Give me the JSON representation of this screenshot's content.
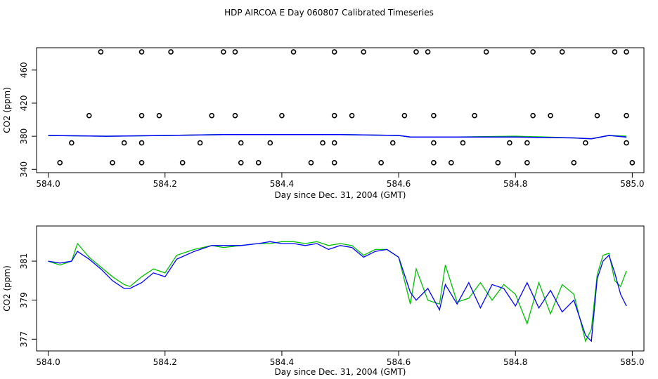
{
  "title": "HDP AIRCOA E  Day 060807  Calibrated Timeseries",
  "colors": {
    "series_green": "#00c000",
    "series_blue": "#0000ff",
    "axis": "#000000"
  },
  "chart_data": [
    {
      "type": "line",
      "xlabel": "Day since Dec. 31, 2004 (GMT)",
      "ylabel": "CO2 (ppm)",
      "xlim": [
        583.98,
        585.02
      ],
      "ylim": [
        336,
        487
      ],
      "xticks": [
        584.0,
        584.2,
        584.4,
        584.6,
        584.8,
        585.0
      ],
      "xtick_labels": [
        "584.0",
        "584.2",
        "584.4",
        "584.6",
        "584.8",
        "585.0"
      ],
      "yticks": [
        340,
        380,
        420,
        460
      ],
      "ytick_labels": [
        "340",
        "380",
        "420",
        "460"
      ],
      "series_green": {
        "x": [
          584.0,
          584.1,
          584.2,
          584.3,
          584.4,
          584.5,
          584.6,
          584.62,
          584.7,
          584.8,
          584.9,
          584.93,
          584.96,
          584.99
        ],
        "y": [
          381,
          380,
          381,
          382,
          382,
          382,
          381,
          379,
          379,
          380,
          378,
          377,
          381,
          380
        ]
      },
      "series_blue": {
        "x": [
          584.0,
          584.1,
          584.2,
          584.3,
          584.4,
          584.5,
          584.6,
          584.62,
          584.7,
          584.8,
          584.9,
          584.93,
          584.96,
          584.99
        ],
        "y": [
          381,
          380,
          381,
          382,
          382,
          382,
          381,
          379,
          379,
          379,
          378,
          377,
          381,
          379
        ]
      },
      "points": {
        "x": [
          584.09,
          584.16,
          584.21,
          584.3,
          584.32,
          584.42,
          584.49,
          584.54,
          584.63,
          584.65,
          584.75,
          584.83,
          584.88,
          584.97,
          584.99,
          584.07,
          584.16,
          584.19,
          584.28,
          584.32,
          584.4,
          584.49,
          584.52,
          584.61,
          584.66,
          584.73,
          584.83,
          584.86,
          584.94,
          584.99,
          584.04,
          584.13,
          584.16,
          584.26,
          584.33,
          584.38,
          584.47,
          584.49,
          584.59,
          584.66,
          584.71,
          584.79,
          584.82,
          584.92,
          584.99,
          584.02,
          584.11,
          584.16,
          584.23,
          584.33,
          584.36,
          584.45,
          584.49,
          584.57,
          584.66,
          584.69,
          584.77,
          584.82,
          584.9,
          585.0
        ],
        "y": [
          482,
          482,
          482,
          482,
          482,
          482,
          482,
          482,
          482,
          482,
          482,
          482,
          482,
          482,
          482,
          405,
          405,
          405,
          405,
          405,
          405,
          405,
          405,
          405,
          405,
          405,
          405,
          405,
          405,
          405,
          372,
          372,
          372,
          372,
          372,
          372,
          372,
          372,
          372,
          372,
          372,
          372,
          372,
          372,
          372,
          348,
          348,
          348,
          348,
          348,
          348,
          348,
          348,
          348,
          348,
          348,
          348,
          348,
          348,
          348
        ]
      }
    },
    {
      "type": "line",
      "xlabel": "Day since Dec. 31, 2004 (GMT)",
      "ylabel": "CO2 (ppm)",
      "xlim": [
        583.98,
        585.02
      ],
      "ylim": [
        376.4,
        382.8
      ],
      "xticks": [
        584.0,
        584.2,
        584.4,
        584.6,
        584.8,
        585.0
      ],
      "xtick_labels": [
        "584.0",
        "584.2",
        "584.4",
        "584.6",
        "584.8",
        "585.0"
      ],
      "yticks": [
        377,
        379,
        381
      ],
      "ytick_labels": [
        "377",
        "379",
        "381"
      ],
      "series_green": {
        "x": [
          584.0,
          584.02,
          584.04,
          584.05,
          584.07,
          584.09,
          584.11,
          584.13,
          584.14,
          584.16,
          584.18,
          584.2,
          584.22,
          584.25,
          584.28,
          584.3,
          584.33,
          584.36,
          584.38,
          584.4,
          584.42,
          584.44,
          584.46,
          584.48,
          584.5,
          584.52,
          584.54,
          584.56,
          584.58,
          584.6,
          584.62,
          584.63,
          584.65,
          584.67,
          584.68,
          584.7,
          584.72,
          584.74,
          584.76,
          584.78,
          584.8,
          584.82,
          584.84,
          584.86,
          584.88,
          584.9,
          584.92,
          584.93,
          584.94,
          584.95,
          584.96,
          584.97,
          584.98,
          584.99
        ],
        "y": [
          381.0,
          380.8,
          381.0,
          381.9,
          381.2,
          380.7,
          380.2,
          379.8,
          379.7,
          380.2,
          380.6,
          380.4,
          381.3,
          381.6,
          381.8,
          381.7,
          381.8,
          381.9,
          381.9,
          382.0,
          382.0,
          381.9,
          382.0,
          381.8,
          381.9,
          381.8,
          381.3,
          381.6,
          381.6,
          381.2,
          378.8,
          380.6,
          379.0,
          378.8,
          380.8,
          378.9,
          379.1,
          379.9,
          379.0,
          379.8,
          379.3,
          377.8,
          379.9,
          378.3,
          379.8,
          379.3,
          376.9,
          377.5,
          380.3,
          381.3,
          381.4,
          380.0,
          379.7,
          380.5
        ],
        "name": ""
      },
      "series_blue": {
        "x": [
          584.0,
          584.02,
          584.04,
          584.05,
          584.07,
          584.09,
          584.11,
          584.13,
          584.14,
          584.16,
          584.18,
          584.2,
          584.22,
          584.25,
          584.28,
          584.3,
          584.33,
          584.36,
          584.38,
          584.4,
          584.42,
          584.44,
          584.46,
          584.48,
          584.5,
          584.52,
          584.54,
          584.56,
          584.58,
          584.6,
          584.62,
          584.63,
          584.65,
          584.67,
          584.68,
          584.7,
          584.72,
          584.74,
          584.76,
          584.78,
          584.8,
          584.82,
          584.84,
          584.86,
          584.88,
          584.9,
          584.92,
          584.93,
          584.94,
          584.95,
          584.96,
          584.97,
          584.98,
          584.99
        ],
        "y": [
          381.0,
          380.9,
          381.0,
          381.5,
          381.1,
          380.6,
          380.0,
          379.6,
          379.6,
          379.9,
          380.4,
          380.2,
          381.1,
          381.5,
          381.8,
          381.8,
          381.8,
          381.9,
          382.0,
          381.9,
          381.9,
          381.8,
          381.9,
          381.6,
          381.8,
          381.7,
          381.2,
          381.5,
          381.6,
          381.2,
          379.4,
          379.0,
          379.6,
          378.5,
          379.8,
          378.8,
          379.9,
          378.6,
          379.8,
          379.6,
          378.7,
          379.9,
          378.6,
          379.5,
          378.4,
          379.0,
          377.2,
          376.9,
          380.1,
          381.0,
          381.3,
          380.4,
          379.3,
          378.7
        ],
        "name": ""
      }
    }
  ]
}
